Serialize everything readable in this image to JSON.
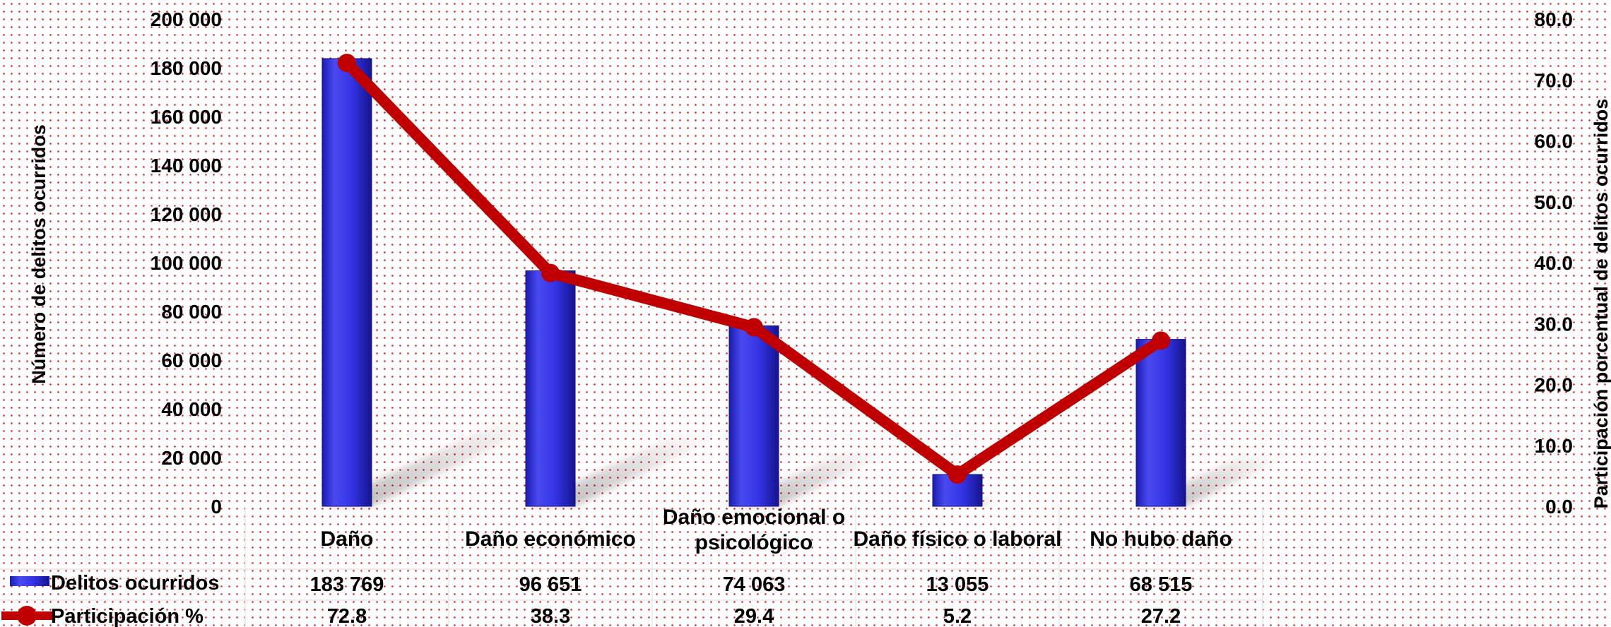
{
  "chart_data": {
    "type": "bar+line",
    "categories": [
      "Daño",
      "Daño económico",
      "Daño emocional o psicológico",
      "Daño físico o laboral",
      "No hubo daño"
    ],
    "category_lines": [
      [
        "Daño"
      ],
      [
        "Daño económico"
      ],
      [
        "Daño emocional o",
        "psicológico"
      ],
      [
        "Daño físico o laboral"
      ],
      [
        "No hubo daño"
      ]
    ],
    "series": [
      {
        "name": "Delitos ocurridos",
        "kind": "bar",
        "axis": "left",
        "values": [
          183769,
          96651,
          74063,
          13055,
          68515
        ],
        "labels": [
          "183 769",
          "96 651",
          "74 063",
          "13 055",
          "68 515"
        ],
        "color": "#3434e6"
      },
      {
        "name": "Participación %",
        "kind": "line",
        "axis": "right",
        "values": [
          72.8,
          38.3,
          29.4,
          5.2,
          27.2
        ],
        "labels": [
          "72.8",
          "38.3",
          "29.4",
          "5.2",
          "27.2"
        ],
        "color": "#c00000"
      }
    ],
    "ylabel": "Número de delitos ocurridos",
    "y2label": "Participación porcentual de delitos ocurridos",
    "ylim": [
      0,
      200000
    ],
    "y_ticks": [
      0,
      20000,
      40000,
      60000,
      80000,
      100000,
      120000,
      140000,
      160000,
      180000,
      200000
    ],
    "y_tick_labels": [
      "0",
      "20 000",
      "40 000",
      "60 000",
      "80 000",
      "100 000",
      "120 000",
      "140 000",
      "160 000",
      "180 000",
      "200 000"
    ],
    "y2lim": [
      0,
      80
    ],
    "y2_ticks": [
      0,
      10,
      20,
      30,
      40,
      50,
      60,
      70,
      80
    ],
    "y2_tick_labels": [
      "0.0",
      "10.0",
      "20.0",
      "30.0",
      "40.0",
      "50.0",
      "60.0",
      "70.0",
      "80.0"
    ],
    "legend": "data-table-below",
    "grid": false
  }
}
